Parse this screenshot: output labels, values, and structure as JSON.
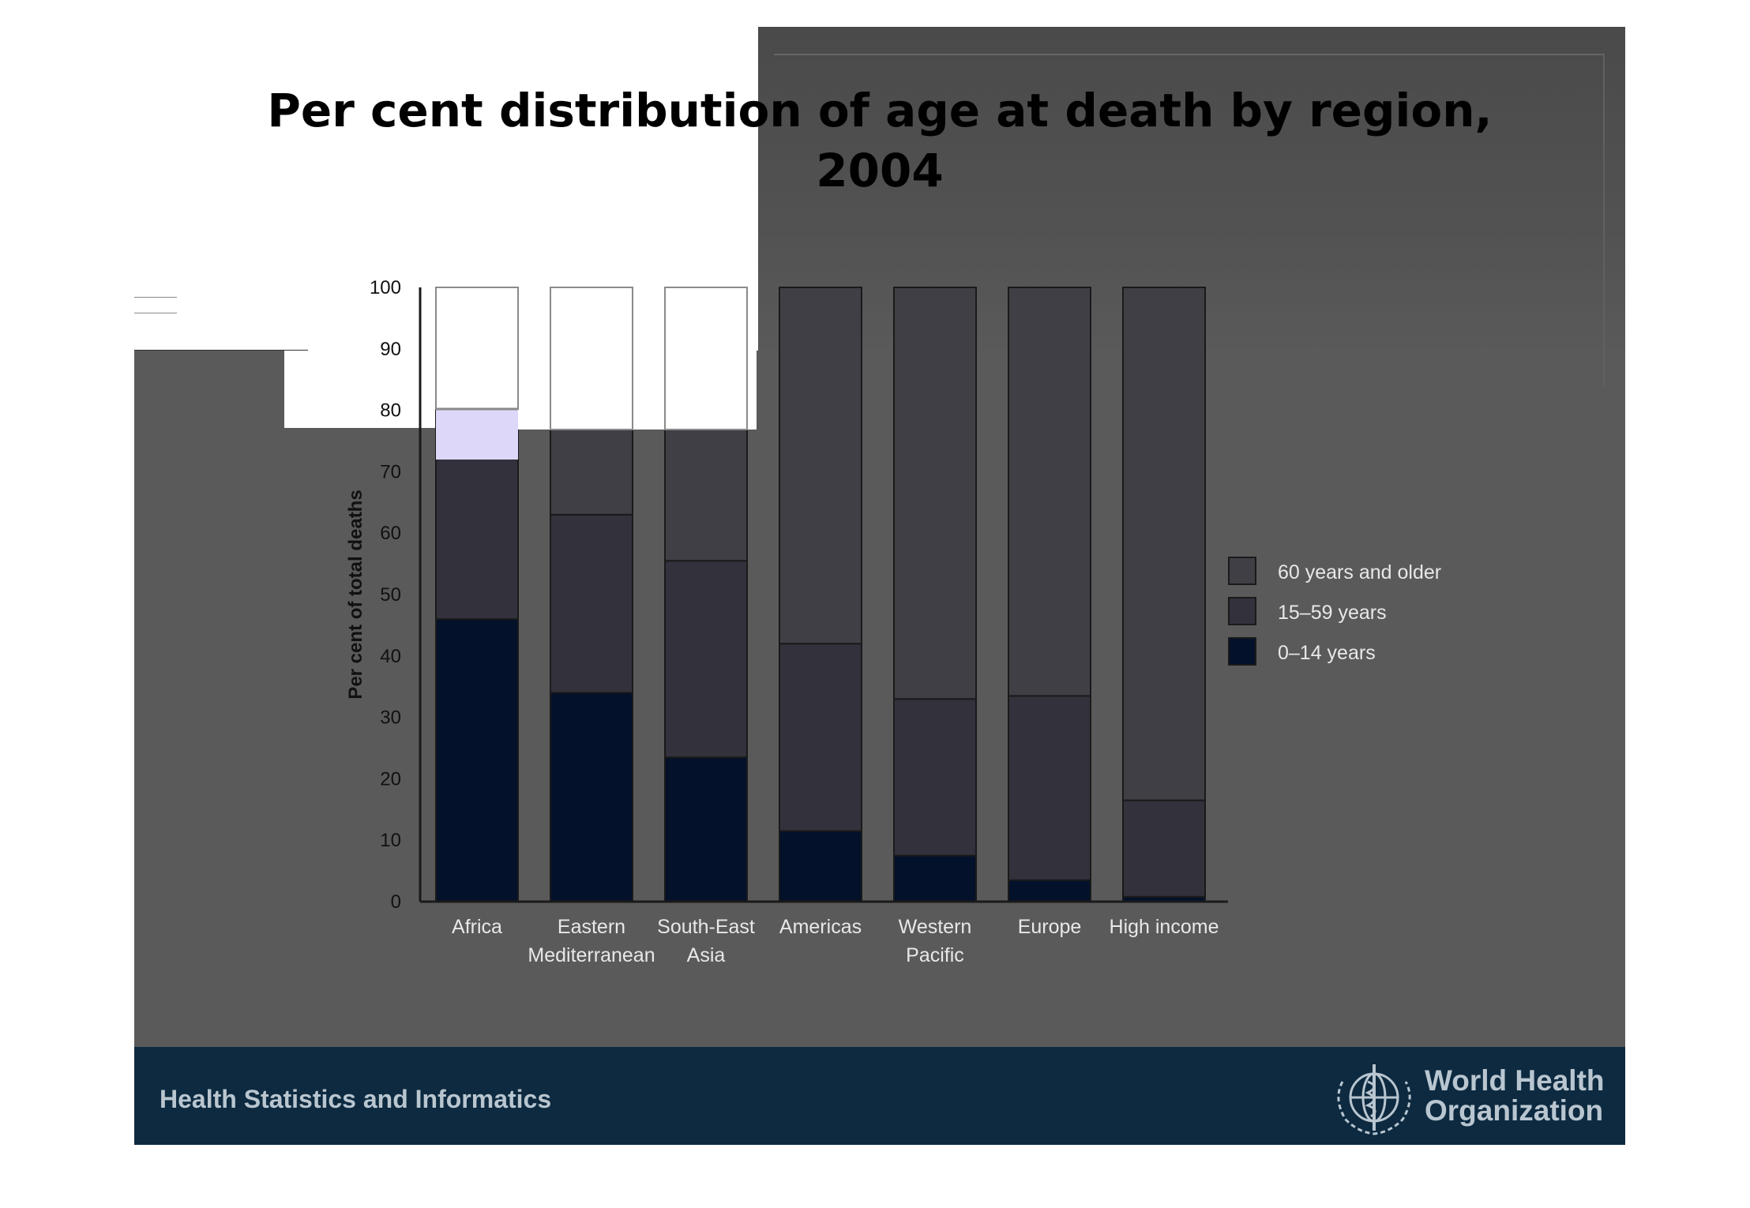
{
  "slide": {
    "title_line1": "Per cent distribution of age at death by region,",
    "title_line2": "2004"
  },
  "footer": {
    "text": "Health Statistics and Informatics",
    "org_line1": "World Health",
    "org_line2": "Organization",
    "logo_icon": "who-emblem-icon"
  },
  "chart_data": {
    "type": "bar",
    "stacked": true,
    "title": "",
    "xlabel": "",
    "ylabel": "Per cent of total deaths",
    "ylim": [
      0,
      100
    ],
    "yticks": [
      0,
      10,
      20,
      30,
      40,
      50,
      60,
      70,
      80,
      90,
      100
    ],
    "categories": [
      [
        "Africa"
      ],
      [
        "Eastern",
        "Mediterranean"
      ],
      [
        "South-East",
        "Asia"
      ],
      [
        "Americas"
      ],
      [
        "Western",
        "Pacific"
      ],
      [
        "Europe"
      ],
      [
        "High income"
      ]
    ],
    "series": [
      {
        "name": "0–14 years",
        "color": "#03112a",
        "values": [
          46,
          34,
          23.5,
          11.5,
          7.5,
          3.5,
          0.8
        ]
      },
      {
        "name": "15–59 years",
        "color": "#33313c",
        "values": [
          34,
          29,
          32,
          30.5,
          25.5,
          30,
          15.7
        ]
      },
      {
        "name": "60 years and older",
        "color": "#403f45",
        "values": [
          20,
          37,
          44.5,
          58,
          67,
          66.5,
          83.5
        ]
      }
    ],
    "legend": {
      "placement": "right",
      "entries": [
        "60 years and older",
        "15–59 years",
        "0–14 years"
      ]
    }
  }
}
